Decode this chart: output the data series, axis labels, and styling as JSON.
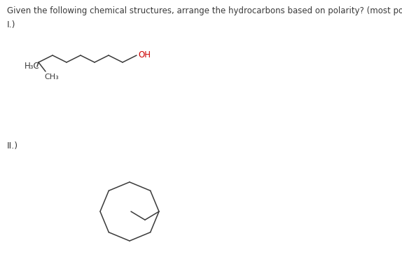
{
  "title": "Given the following chemical structures, arrange the hydrocarbons based on polarity? (most polar > polar > non polar)",
  "title_fontsize": 8.5,
  "background_color": "#ffffff",
  "label1": "I.)",
  "label2": "II.)",
  "h3c_text": "H₃C",
  "oh_text": "OH",
  "ch3_text": "CH₃",
  "bond_color": "#3a3a3a",
  "oh_color": "#cc0000",
  "text_color": "#3a3a3a",
  "label_fontsize": 9,
  "mol_fontsize": 8.5
}
